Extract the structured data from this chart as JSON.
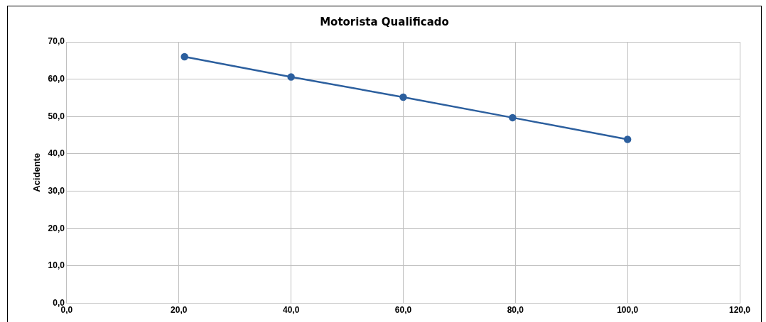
{
  "chart_data": {
    "type": "line",
    "title": "Motorista Qualificado",
    "ylabel": "Acidente",
    "x": [
      21,
      40,
      60,
      79.5,
      100
    ],
    "series": [
      {
        "color": "#2c5f9e",
        "values": [
          66.0,
          60.6,
          55.2,
          49.7,
          43.9
        ]
      }
    ],
    "xlim": [
      0,
      120
    ],
    "xticks": [
      {
        "value": 0,
        "label": "0,0"
      },
      {
        "value": 20,
        "label": "20,0"
      },
      {
        "value": 40,
        "label": "40,0"
      },
      {
        "value": 60,
        "label": "60,0"
      },
      {
        "value": 80,
        "label": "80,0"
      },
      {
        "value": 100,
        "label": "100,0"
      },
      {
        "value": 120,
        "label": "120,0"
      }
    ],
    "ylim": [
      0,
      70
    ],
    "yticks": [
      {
        "value": 0,
        "label": "0,0"
      },
      {
        "value": 10,
        "label": "10,0"
      },
      {
        "value": 20,
        "label": "20,0"
      },
      {
        "value": 30,
        "label": "30,0"
      },
      {
        "value": 40,
        "label": "40,0"
      },
      {
        "value": 50,
        "label": "50,0"
      },
      {
        "value": 60,
        "label": "60,0"
      },
      {
        "value": 70,
        "label": "70,0"
      }
    ],
    "grid": true,
    "marker": "circle",
    "line_style": "solid",
    "legend": false
  }
}
